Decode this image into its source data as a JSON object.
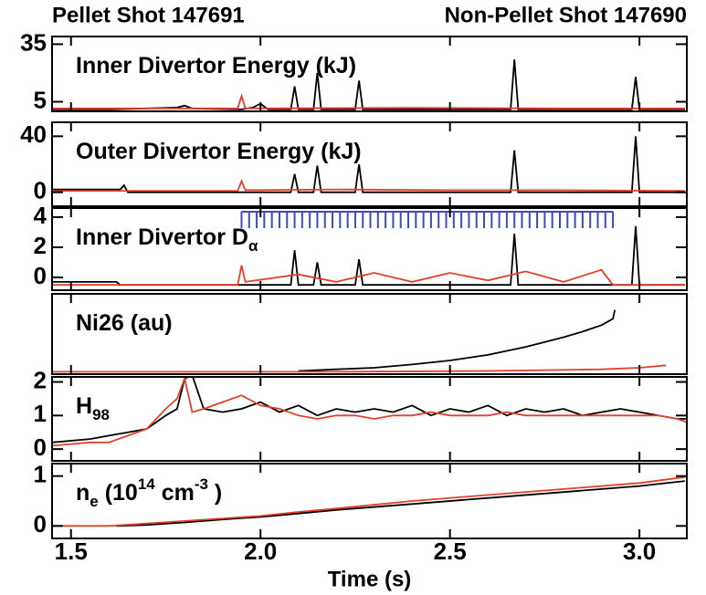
{
  "header": {
    "pellet_shot": "Pellet Shot 147691",
    "pellet_color": "#e0412a",
    "non_pellet_shot": "Non-Pellet Shot 147690",
    "non_pellet_color": "#000000"
  },
  "chart_data": [
    {
      "type": "line",
      "title_parts": [
        {
          "text": "Inner Divertor Energy (kJ)"
        }
      ],
      "xlim": [
        1.45,
        3.125
      ],
      "ylim": [
        0,
        39
      ],
      "yticks": [
        5,
        35
      ],
      "xticks": [
        1.5,
        2,
        2.5,
        3
      ],
      "series": [
        {
          "color": "#000000",
          "x": [
            1.45,
            1.6,
            1.7,
            1.78,
            1.8,
            1.82,
            1.95,
            1.98,
            2.0,
            2.02,
            2.08,
            2.09,
            2.1,
            2.14,
            2.15,
            2.16,
            2.25,
            2.26,
            2.27,
            2.66,
            2.67,
            2.68,
            2.98,
            2.99,
            3.0,
            3.12
          ],
          "values": [
            1,
            1,
            1.5,
            2,
            3,
            1.5,
            1,
            2,
            4,
            1,
            1,
            13,
            1,
            1,
            20,
            1,
            1,
            16,
            1,
            1,
            27,
            1,
            1,
            18,
            1,
            1
          ]
        },
        {
          "color": "#e0412a",
          "x": [
            1.45,
            1.94,
            1.95,
            1.96,
            2.4,
            2.8,
            3.12
          ],
          "values": [
            1.5,
            1.5,
            8,
            1.5,
            1.8,
            1.5,
            1.5
          ]
        }
      ]
    },
    {
      "type": "line",
      "title_parts": [
        {
          "text": "Outer Divertor Energy (kJ)"
        }
      ],
      "xlim": [
        1.45,
        3.125
      ],
      "ylim": [
        -10,
        50
      ],
      "yticks": [
        0,
        40
      ],
      "xticks": [
        1.5,
        2,
        2.5,
        3
      ],
      "series": [
        {
          "color": "#000000",
          "x": [
            1.45,
            1.63,
            1.64,
            1.65,
            2.08,
            2.09,
            2.1,
            2.14,
            2.15,
            2.16,
            2.25,
            2.26,
            2.27,
            2.66,
            2.67,
            2.68,
            2.98,
            2.99,
            3.0,
            3.12
          ],
          "values": [
            2,
            2,
            5,
            0,
            0,
            13,
            0,
            0,
            19,
            0,
            0,
            20,
            0,
            0,
            30,
            0,
            0,
            40,
            0,
            0
          ]
        },
        {
          "color": "#e0412a",
          "x": [
            1.45,
            1.6,
            1.94,
            1.95,
            1.96,
            2.2,
            2.5,
            2.8,
            3.12
          ],
          "values": [
            1,
            1,
            1,
            8,
            1.5,
            2,
            1.5,
            1.5,
            1
          ]
        }
      ]
    },
    {
      "type": "line",
      "title_parts": [
        {
          "text": "Inner Divertor D"
        },
        {
          "sub": "α"
        }
      ],
      "xlim": [
        1.45,
        3.125
      ],
      "ylim": [
        -0.85,
        4.6
      ],
      "yticks": [
        0,
        2,
        4
      ],
      "xticks": [
        1.5,
        2,
        2.5,
        3
      ],
      "pellet_markers": {
        "color": "#3b4cc0",
        "x": [
          1.95,
          1.97,
          1.99,
          2.01,
          2.03,
          2.05,
          2.07,
          2.09,
          2.11,
          2.13,
          2.15,
          2.17,
          2.19,
          2.21,
          2.23,
          2.25,
          2.27,
          2.29,
          2.31,
          2.33,
          2.35,
          2.37,
          2.39,
          2.41,
          2.43,
          2.45,
          2.47,
          2.49,
          2.51,
          2.53,
          2.55,
          2.57,
          2.59,
          2.61,
          2.63,
          2.65,
          2.67,
          2.69,
          2.71,
          2.73,
          2.75,
          2.77,
          2.79,
          2.81,
          2.83,
          2.85,
          2.87,
          2.89,
          2.91,
          2.93
        ]
      },
      "series": [
        {
          "color": "#000000",
          "x": [
            1.45,
            1.62,
            1.63,
            2.08,
            2.09,
            2.1,
            2.14,
            2.15,
            2.16,
            2.25,
            2.26,
            2.27,
            2.66,
            2.67,
            2.68,
            2.98,
            2.99,
            3.0,
            3.12
          ],
          "values": [
            -0.3,
            -0.3,
            -0.5,
            -0.5,
            1.8,
            -0.5,
            -0.5,
            1.0,
            -0.5,
            -0.5,
            1.2,
            -0.5,
            -0.5,
            2.9,
            -0.5,
            -0.5,
            3.4,
            -0.5,
            -0.5
          ]
        },
        {
          "color": "#e0412a",
          "x": [
            1.45,
            1.94,
            1.95,
            1.96,
            2.1,
            2.2,
            2.3,
            2.4,
            2.5,
            2.6,
            2.7,
            2.8,
            2.9,
            2.93,
            3.12
          ],
          "values": [
            -0.5,
            -0.5,
            0.8,
            -0.3,
            0.2,
            -0.3,
            0.3,
            -0.3,
            0.3,
            -0.2,
            0.4,
            -0.3,
            0.5,
            -0.5,
            -0.5
          ]
        }
      ]
    },
    {
      "type": "line",
      "title_parts": [
        {
          "text": "Ni26 (au)"
        }
      ],
      "xlim": [
        1.45,
        3.125
      ],
      "ylim": [
        0,
        1
      ],
      "xticks": [
        1.5,
        2,
        2.5,
        3
      ],
      "series": [
        {
          "color": "#000000",
          "x": [
            2.1,
            2.2,
            2.3,
            2.4,
            2.5,
            2.6,
            2.7,
            2.8,
            2.85,
            2.9,
            2.93,
            2.935
          ],
          "values": [
            0.04,
            0.06,
            0.08,
            0.12,
            0.17,
            0.24,
            0.34,
            0.46,
            0.53,
            0.61,
            0.69,
            0.8
          ]
        },
        {
          "color": "#e0412a",
          "x": [
            1.45,
            1.8,
            2.2,
            2.6,
            2.9,
            3.0,
            3.07
          ],
          "values": [
            0.03,
            0.03,
            0.03,
            0.04,
            0.06,
            0.08,
            0.11
          ]
        }
      ]
    },
    {
      "type": "line",
      "title_parts": [
        {
          "text": "H"
        },
        {
          "sub": "98"
        }
      ],
      "xlim": [
        1.45,
        3.125
      ],
      "ylim": [
        -0.35,
        2.15
      ],
      "yticks": [
        0,
        1,
        2
      ],
      "xticks": [
        1.5,
        2,
        2.5,
        3
      ],
      "series": [
        {
          "color": "#000000",
          "x": [
            1.45,
            1.55,
            1.6,
            1.65,
            1.7,
            1.75,
            1.78,
            1.8,
            1.82,
            1.85,
            1.9,
            1.95,
            2.0,
            2.05,
            2.1,
            2.15,
            2.2,
            2.25,
            2.3,
            2.35,
            2.4,
            2.45,
            2.5,
            2.55,
            2.6,
            2.65,
            2.7,
            2.75,
            2.8,
            2.85,
            2.9,
            2.95,
            3.0,
            3.05,
            3.1,
            3.125
          ],
          "values": [
            0.2,
            0.3,
            0.4,
            0.5,
            0.6,
            1.0,
            1.2,
            2.1,
            2.2,
            1.2,
            1.1,
            1.2,
            1.4,
            1.1,
            1.3,
            1.0,
            1.2,
            1.1,
            1.2,
            1.1,
            1.3,
            1.0,
            1.2,
            1.1,
            1.3,
            1.0,
            1.2,
            1.1,
            1.2,
            1.0,
            1.1,
            1.2,
            1.1,
            1.0,
            0.9,
            0.9
          ]
        },
        {
          "color": "#e0412a",
          "x": [
            1.45,
            1.55,
            1.6,
            1.65,
            1.7,
            1.75,
            1.78,
            1.8,
            1.82,
            1.85,
            1.9,
            1.95,
            2.0,
            2.05,
            2.1,
            2.15,
            2.2,
            2.25,
            2.3,
            2.35,
            2.4,
            2.45,
            2.5,
            2.55,
            2.6,
            2.65,
            2.7,
            2.75,
            2.8,
            2.85,
            2.9,
            2.95,
            3.0,
            3.05,
            3.1,
            3.125
          ],
          "values": [
            0.1,
            0.2,
            0.2,
            0.4,
            0.6,
            1.2,
            1.5,
            2.1,
            1.1,
            1.2,
            1.4,
            1.6,
            1.3,
            1.2,
            1.0,
            0.9,
            1.0,
            1.0,
            0.9,
            1.0,
            1.0,
            1.1,
            1.0,
            1.0,
            1.0,
            1.1,
            1.0,
            1.0,
            1.0,
            1.0,
            1.0,
            1.0,
            1.0,
            1.0,
            0.9,
            0.8
          ]
        }
      ]
    },
    {
      "type": "line",
      "title_parts": [
        {
          "text": "n"
        },
        {
          "sub": "e"
        },
        {
          "text": " (10"
        },
        {
          "sup": "14"
        },
        {
          "text": " cm"
        },
        {
          "sup": "-3"
        },
        {
          "text": " )"
        }
      ],
      "xlim": [
        1.45,
        3.125
      ],
      "ylim": [
        -0.25,
        1.25
      ],
      "yticks": [
        0,
        1
      ],
      "xticks": [
        {
          "value": 1.5,
          "label": "1.5"
        },
        {
          "value": 2,
          "label": "2.0"
        },
        {
          "value": 2.5,
          "label": "2.5"
        },
        {
          "value": 3,
          "label": "3.0"
        }
      ],
      "x_label": "Time (s)",
      "series": [
        {
          "color": "#000000",
          "x": [
            1.62,
            1.7,
            1.8,
            1.9,
            2.0,
            2.1,
            2.2,
            2.4,
            2.6,
            2.8,
            3.0,
            3.12
          ],
          "values": [
            0,
            0.02,
            0.07,
            0.13,
            0.18,
            0.25,
            0.32,
            0.44,
            0.56,
            0.68,
            0.8,
            0.9
          ]
        },
        {
          "color": "#e0412a",
          "x": [
            1.45,
            1.6,
            1.7,
            1.8,
            1.9,
            2.0,
            2.1,
            2.2,
            2.4,
            2.6,
            2.8,
            3.0,
            3.12
          ],
          "values": [
            0,
            0,
            0.05,
            0.1,
            0.15,
            0.2,
            0.28,
            0.35,
            0.5,
            0.62,
            0.74,
            0.86,
            0.98
          ]
        }
      ]
    }
  ]
}
